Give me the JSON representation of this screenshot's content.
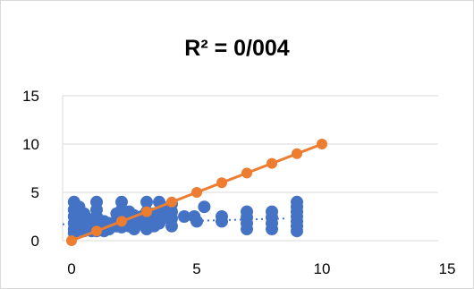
{
  "chart_data": {
    "type": "scatter",
    "title": "R² = 0/004",
    "xlabel": "",
    "ylabel": "",
    "xlim": [
      0,
      15
    ],
    "ylim": [
      0,
      15
    ],
    "x_ticks": [
      "0",
      "5",
      "10",
      "15"
    ],
    "y_ticks": [
      "0",
      "5",
      "10",
      "15"
    ],
    "grid": "horizontal",
    "legend": "none",
    "series": [
      {
        "type": "scatter",
        "color": "#4472c4",
        "trendline": "linear-dotted",
        "trendline_points": [
          [
            0,
            1.7
          ],
          [
            9,
            2.3
          ]
        ],
        "points": [
          [
            0.1,
            4
          ],
          [
            0.1,
            3.2
          ],
          [
            0.1,
            2.5
          ],
          [
            0.1,
            1.8
          ],
          [
            0.1,
            1.2
          ],
          [
            0.1,
            0.8
          ],
          [
            0.3,
            3.5
          ],
          [
            0.3,
            2.8
          ],
          [
            0.3,
            2
          ],
          [
            0.3,
            1.2
          ],
          [
            0.5,
            2.8
          ],
          [
            0.5,
            2
          ],
          [
            0.5,
            1.5
          ],
          [
            0.5,
            1
          ],
          [
            0.8,
            2.2
          ],
          [
            0.8,
            1.5
          ],
          [
            0.8,
            1
          ],
          [
            1,
            4
          ],
          [
            1,
            3.2
          ],
          [
            1,
            2.5
          ],
          [
            1,
            2
          ],
          [
            1,
            1.5
          ],
          [
            1,
            1
          ],
          [
            1.3,
            2
          ],
          [
            1.3,
            1.4
          ],
          [
            1.3,
            1
          ],
          [
            1.5,
            1.8
          ],
          [
            1.5,
            1.2
          ],
          [
            1.8,
            2.8
          ],
          [
            1.8,
            2
          ],
          [
            1.8,
            1.5
          ],
          [
            2,
            4
          ],
          [
            2,
            3.2
          ],
          [
            2,
            2.5
          ],
          [
            2,
            2
          ],
          [
            2,
            1.4
          ],
          [
            2.3,
            3
          ],
          [
            2.3,
            2.3
          ],
          [
            2.3,
            1.5
          ],
          [
            2.5,
            2.6
          ],
          [
            2.5,
            1.8
          ],
          [
            2.5,
            1.2
          ],
          [
            2.8,
            2.5
          ],
          [
            2.8,
            1.8
          ],
          [
            3,
            4
          ],
          [
            3,
            3
          ],
          [
            3,
            2.4
          ],
          [
            3,
            1.8
          ],
          [
            3,
            1.2
          ],
          [
            3.3,
            2.8
          ],
          [
            3.3,
            2
          ],
          [
            3.3,
            1.5
          ],
          [
            3.5,
            4
          ],
          [
            3.5,
            3
          ],
          [
            3.5,
            2.4
          ],
          [
            3.5,
            1.8
          ],
          [
            3.8,
            3.2
          ],
          [
            3.8,
            2.4
          ],
          [
            4,
            3.8
          ],
          [
            4,
            3
          ],
          [
            4,
            2.3
          ],
          [
            4,
            1.5
          ],
          [
            4.5,
            2.5
          ],
          [
            4.9,
            2.5
          ],
          [
            5,
            2
          ],
          [
            5.3,
            3.5
          ],
          [
            6,
            2.5
          ],
          [
            6,
            2
          ],
          [
            7,
            3
          ],
          [
            7,
            2.4
          ],
          [
            7,
            1.8
          ],
          [
            7,
            1.2
          ],
          [
            8,
            3
          ],
          [
            8,
            2.4
          ],
          [
            8,
            1.8
          ],
          [
            8,
            1.2
          ],
          [
            9,
            4
          ],
          [
            9,
            3.5
          ],
          [
            9,
            3
          ],
          [
            9,
            2.5
          ],
          [
            9,
            2
          ],
          [
            9,
            1.5
          ],
          [
            9,
            1
          ]
        ]
      },
      {
        "type": "line",
        "color": "#ed7d31",
        "points": [
          [
            0,
            0
          ],
          [
            1,
            1
          ],
          [
            2,
            2
          ],
          [
            3,
            3
          ],
          [
            4,
            4
          ],
          [
            5,
            5
          ],
          [
            6,
            6
          ],
          [
            7,
            7
          ],
          [
            8,
            8
          ],
          [
            9,
            9
          ],
          [
            10,
            10
          ]
        ]
      }
    ]
  }
}
